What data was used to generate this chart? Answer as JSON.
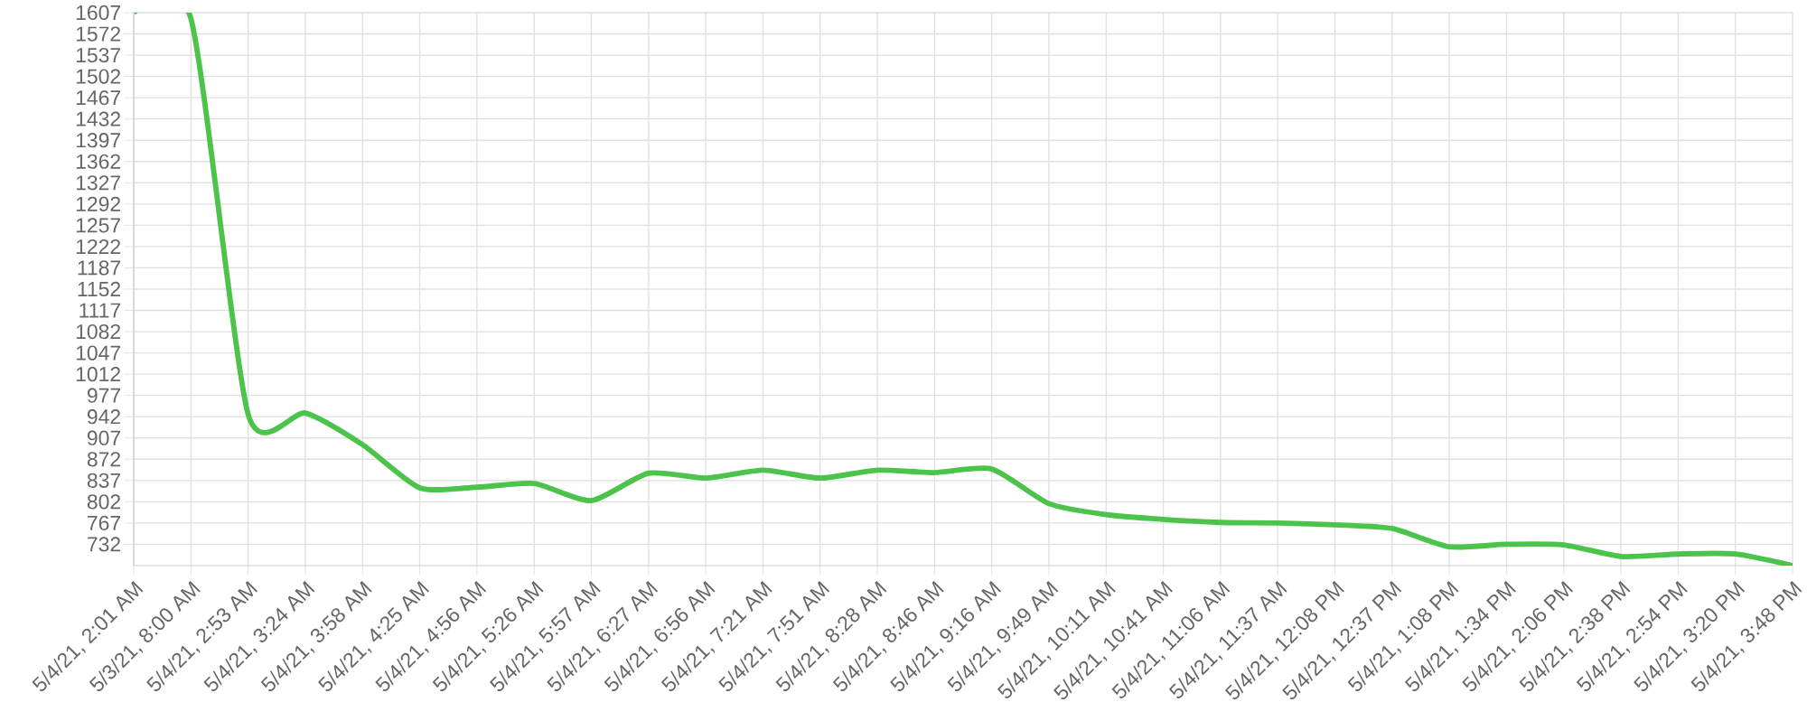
{
  "chart_data": {
    "type": "line",
    "categories": [
      "5/4/21, 2:01 AM",
      "5/3/21, 8:00 AM",
      "5/4/21, 2:53 AM",
      "5/4/21, 3:24 AM",
      "5/4/21, 3:58 AM",
      "5/4/21, 4:25 AM",
      "5/4/21, 4:56 AM",
      "5/4/21, 5:26 AM",
      "5/4/21, 5:57 AM",
      "5/4/21, 6:27 AM",
      "5/4/21, 6:56 AM",
      "5/4/21, 7:21 AM",
      "5/4/21, 7:51 AM",
      "5/4/21, 8:28 AM",
      "5/4/21, 8:46 AM",
      "5/4/21, 9:16 AM",
      "5/4/21, 9:49 AM",
      "5/4/21, 10:11 AM",
      "5/4/21, 10:41 AM",
      "5/4/21, 11:06 AM",
      "5/4/21, 11:37 AM",
      "5/4/21, 12:08 PM",
      "5/4/21, 12:37 PM",
      "5/4/21, 1:08 PM",
      "5/4/21, 1:34 PM",
      "5/4/21, 2:06 PM",
      "5/4/21, 2:38 PM",
      "5/4/21, 2:54 PM",
      "5/4/21, 3:20 PM",
      "5/4/21, 3:48 PM"
    ],
    "values": [
      1607,
      1597,
      946,
      948,
      896,
      825,
      826,
      832,
      804,
      849,
      841,
      854,
      841,
      854,
      850,
      856,
      799,
      781,
      773,
      768,
      767,
      764,
      758,
      728,
      732,
      731,
      712,
      716,
      716,
      697
    ],
    "color": "#4cc44c",
    "ylim": [
      697,
      1607
    ],
    "yticks": [
      732,
      767,
      802,
      837,
      872,
      907,
      942,
      977,
      1012,
      1047,
      1082,
      1117,
      1152,
      1187,
      1222,
      1257,
      1292,
      1327,
      1362,
      1397,
      1432,
      1467,
      1502,
      1537,
      1572,
      1607
    ],
    "grid": true,
    "line_style": "solid"
  }
}
